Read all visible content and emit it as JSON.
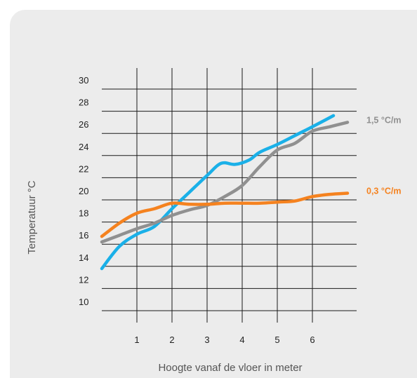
{
  "chart_data": {
    "type": "line",
    "title": "",
    "xlabel": "Hoogte vanaf de vloer in meter",
    "ylabel": "Temperatuur °C",
    "xlim": [
      0,
      7.2
    ],
    "ylim": [
      10,
      30
    ],
    "x_ticks": [
      1,
      2,
      3,
      4,
      5,
      6
    ],
    "y_ticks": [
      10,
      12,
      14,
      16,
      18,
      20,
      22,
      24,
      26,
      28,
      30
    ],
    "grid": true,
    "legend": "right, at line ends",
    "series": [
      {
        "name": "",
        "color": "#1ab0e8",
        "values": [
          [
            0,
            13.8
          ],
          [
            0.5,
            15.8
          ],
          [
            1,
            16.9
          ],
          [
            1.5,
            17.6
          ],
          [
            2,
            19.2
          ],
          [
            2.5,
            20.7
          ],
          [
            3,
            22.2
          ],
          [
            3.4,
            23.3
          ],
          [
            3.8,
            23.2
          ],
          [
            4.2,
            23.6
          ],
          [
            4.5,
            24.3
          ],
          [
            5,
            25.0
          ],
          [
            5.5,
            25.8
          ],
          [
            6,
            26.6
          ],
          [
            6.6,
            27.6
          ]
        ]
      },
      {
        "name": "1,5 °C/m",
        "color": "#909090",
        "values": [
          [
            0,
            16.2
          ],
          [
            0.5,
            16.8
          ],
          [
            1,
            17.4
          ],
          [
            1.5,
            17.9
          ],
          [
            2,
            18.6
          ],
          [
            2.5,
            19.1
          ],
          [
            3,
            19.5
          ],
          [
            3.5,
            20.3
          ],
          [
            4,
            21.3
          ],
          [
            4.5,
            23.0
          ],
          [
            5,
            24.5
          ],
          [
            5.5,
            25.1
          ],
          [
            6,
            26.2
          ],
          [
            6.5,
            26.6
          ],
          [
            7,
            27.0
          ]
        ]
      },
      {
        "name": "0,3 °C/m",
        "color": "#f5821f",
        "values": [
          [
            0,
            16.7
          ],
          [
            0.5,
            17.9
          ],
          [
            1,
            18.8
          ],
          [
            1.5,
            19.2
          ],
          [
            2,
            19.7
          ],
          [
            2.5,
            19.6
          ],
          [
            3,
            19.6
          ],
          [
            3.5,
            19.7
          ],
          [
            4,
            19.7
          ],
          [
            4.5,
            19.7
          ],
          [
            5,
            19.8
          ],
          [
            5.5,
            19.9
          ],
          [
            6,
            20.3
          ],
          [
            6.5,
            20.5
          ],
          [
            7,
            20.6
          ]
        ]
      }
    ]
  }
}
